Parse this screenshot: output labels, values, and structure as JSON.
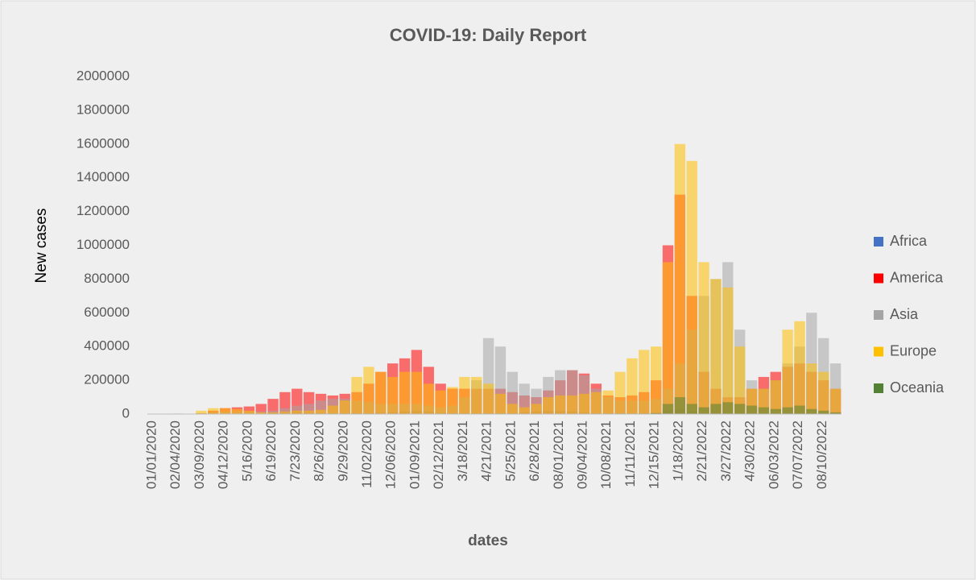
{
  "chart_data": {
    "type": "bar",
    "title": "COVID-19: Daily Report",
    "x_label": "dates",
    "y_label": "New cases",
    "categories": [
      "01/01/2020",
      null,
      "02/04/2020",
      null,
      "03/09/2020",
      null,
      "04/12/2020",
      null,
      "5/16/2020",
      null,
      "6/19/2020",
      null,
      "7/23/2020",
      null,
      "8/26/2020",
      null,
      "9/29/2020",
      null,
      "11/02/2020",
      null,
      "12/06/2020",
      null,
      "01/09/2021",
      null,
      "02/12/2021",
      null,
      "3/18/2021",
      null,
      "4/21/2021",
      null,
      "5/25/2021",
      null,
      "6/28/2021",
      null,
      "08/01/2021",
      null,
      "09/04/2021",
      null,
      "10/08/2021",
      null,
      "11/11/2021",
      null,
      "12/15/2021",
      null,
      "1/18/2022",
      null,
      "2/21/2022",
      null,
      "3/27/2022",
      null,
      "4/30/2022",
      null,
      "06/03/2022",
      null,
      "07/07/2022",
      null,
      "08/10/2022",
      null
    ],
    "series": [
      {
        "name": "Africa",
        "color": "#4472c4",
        "values": [
          0,
          0,
          0,
          0,
          0,
          0,
          0,
          0,
          0,
          0,
          5000,
          8000,
          10000,
          8000,
          5000,
          5000,
          5000,
          5000,
          5000,
          8000,
          10000,
          15000,
          20000,
          15000,
          8000,
          5000,
          5000,
          5000,
          5000,
          5000,
          5000,
          10000,
          15000,
          20000,
          20000,
          15000,
          10000,
          5000,
          5000,
          5000,
          5000,
          5000,
          10000,
          25000,
          30000,
          15000,
          5000,
          5000,
          5000,
          5000,
          5000,
          5000,
          5000,
          5000,
          5000,
          5000,
          5000,
          5000
        ]
      },
      {
        "name": "America",
        "color": "#ff0000",
        "values": [
          0,
          0,
          0,
          0,
          5000,
          20000,
          35000,
          40000,
          45000,
          60000,
          90000,
          130000,
          150000,
          130000,
          120000,
          110000,
          120000,
          130000,
          180000,
          250000,
          300000,
          330000,
          380000,
          280000,
          180000,
          150000,
          150000,
          150000,
          150000,
          150000,
          130000,
          110000,
          100000,
          140000,
          200000,
          260000,
          240000,
          180000,
          110000,
          100000,
          110000,
          130000,
          200000,
          1000000,
          1300000,
          700000,
          250000,
          150000,
          100000,
          100000,
          150000,
          220000,
          250000,
          280000,
          300000,
          250000,
          200000,
          150000
        ]
      },
      {
        "name": "Asia",
        "color": "#a5a5a5",
        "values": [
          0,
          0,
          3000,
          2000,
          5000,
          10000,
          15000,
          15000,
          15000,
          15000,
          20000,
          35000,
          50000,
          60000,
          80000,
          90000,
          90000,
          80000,
          70000,
          60000,
          60000,
          60000,
          60000,
          50000,
          40000,
          50000,
          100000,
          200000,
          450000,
          400000,
          250000,
          180000,
          150000,
          220000,
          260000,
          260000,
          230000,
          150000,
          100000,
          80000,
          80000,
          80000,
          90000,
          150000,
          300000,
          500000,
          700000,
          800000,
          900000,
          500000,
          200000,
          150000,
          200000,
          300000,
          400000,
          600000,
          450000,
          300000
        ]
      },
      {
        "name": "Europe",
        "color": "#ffc000",
        "values": [
          0,
          0,
          0,
          0,
          20000,
          35000,
          35000,
          30000,
          20000,
          10000,
          10000,
          15000,
          20000,
          20000,
          25000,
          50000,
          80000,
          220000,
          280000,
          250000,
          220000,
          250000,
          250000,
          180000,
          140000,
          160000,
          220000,
          220000,
          180000,
          120000,
          60000,
          40000,
          60000,
          100000,
          110000,
          110000,
          120000,
          130000,
          140000,
          250000,
          330000,
          380000,
          400000,
          900000,
          1600000,
          1500000,
          900000,
          800000,
          750000,
          400000,
          150000,
          150000,
          200000,
          500000,
          550000,
          300000,
          250000,
          150000
        ]
      },
      {
        "name": "Oceania",
        "color": "#548235",
        "values": [
          0,
          0,
          0,
          0,
          0,
          1000,
          1000,
          0,
          0,
          0,
          0,
          1000,
          1000,
          1000,
          0,
          0,
          0,
          0,
          0,
          0,
          0,
          0,
          0,
          0,
          0,
          0,
          0,
          0,
          0,
          0,
          0,
          0,
          0,
          1000,
          2000,
          2000,
          2000,
          2000,
          2000,
          2000,
          2000,
          3000,
          5000,
          60000,
          100000,
          60000,
          40000,
          60000,
          70000,
          60000,
          50000,
          40000,
          30000,
          40000,
          50000,
          30000,
          20000,
          10000
        ]
      }
    ],
    "ylim": [
      0,
      2000000
    ],
    "yticks": [
      0,
      200000,
      400000,
      600000,
      800000,
      1000000,
      1200000,
      1400000,
      1600000,
      1800000,
      2000000
    ],
    "grid": false,
    "legend": "right",
    "overlap": true
  }
}
